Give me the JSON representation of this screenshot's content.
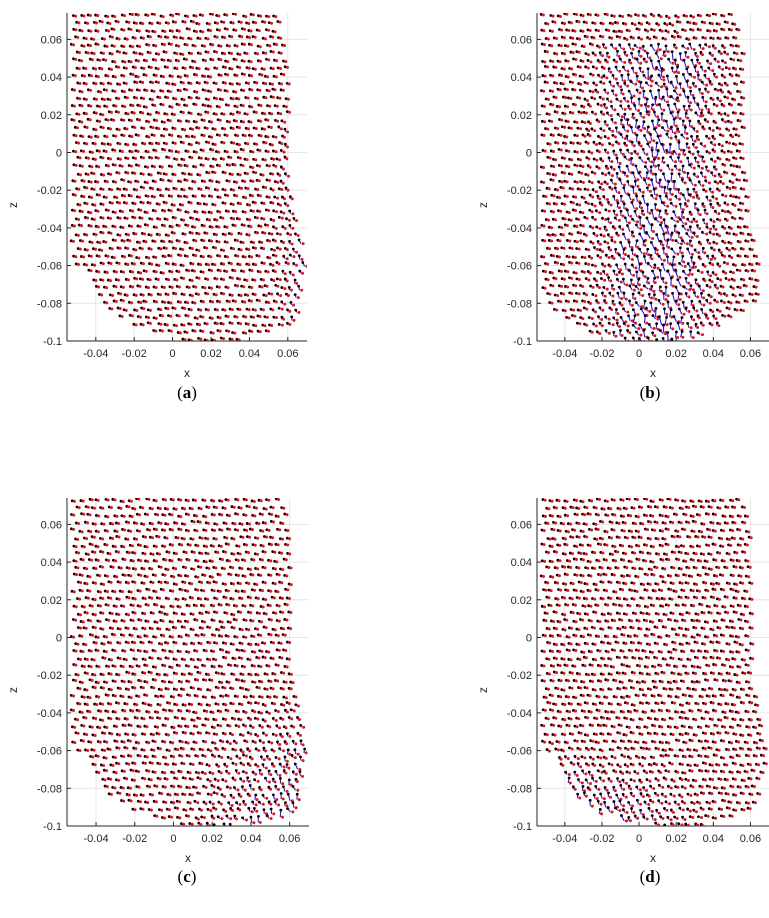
{
  "figure": {
    "panels": [
      {
        "caption_open": "(",
        "caption_letter": "a",
        "caption_close": ")"
      },
      {
        "caption_open": "(",
        "caption_letter": "b",
        "caption_close": ")"
      },
      {
        "caption_open": "(",
        "caption_letter": "c",
        "caption_close": ")"
      },
      {
        "caption_open": "(",
        "caption_letter": "d",
        "caption_close": ")"
      }
    ]
  },
  "colors": {
    "reference_points": "#000000",
    "estimated_points": "#e8141c",
    "displacement_vectors": "#1a1ae6",
    "grid": "#e6e6e6",
    "axis": "#262626"
  },
  "chart_data": [
    {
      "type": "scatter",
      "panel": "a",
      "xlabel": "x",
      "ylabel": "z",
      "xlim": [
        -0.055,
        0.07
      ],
      "ylim": [
        -0.1,
        0.074
      ],
      "xticks": [
        -0.04,
        -0.02,
        0,
        0.02,
        0.04,
        0.06
      ],
      "xtick_labels": [
        "-0.04",
        "-0.02",
        "0",
        "0.02",
        "0.04",
        "0.06"
      ],
      "yticks": [
        0.06,
        0.04,
        0.02,
        0,
        -0.02,
        -0.04,
        -0.06,
        -0.08,
        -0.1
      ],
      "ytick_labels": [
        "0.06",
        "0.04",
        "0.02",
        "0",
        "-0.02",
        "-0.04",
        "-0.06",
        "-0.08",
        "-0.1"
      ],
      "grid": true,
      "outline": {
        "x_left": -0.053,
        "x_right": 0.068,
        "bottom_z": -0.1,
        "bottom_center_x": 0.02,
        "right_bulge_z": -0.06
      },
      "displacement_region": "right-edge",
      "displacement_strength": 0.35
    },
    {
      "type": "scatter",
      "panel": "b",
      "xlabel": "x",
      "ylabel": "z",
      "xlim": [
        -0.055,
        0.07
      ],
      "ylim": [
        -0.1,
        0.074
      ],
      "xticks": [
        -0.04,
        -0.02,
        0,
        0.02,
        0.04,
        0.06
      ],
      "xtick_labels": [
        "-0.04",
        "-0.02",
        "0",
        "0.02",
        "0.04",
        "0.06"
      ],
      "yticks": [
        0.06,
        0.04,
        0.02,
        0,
        -0.02,
        -0.04,
        -0.06,
        -0.08,
        -0.1
      ],
      "ytick_labels": [
        "0.06",
        "0.04",
        "0.02",
        "0",
        "-0.02",
        "-0.04",
        "-0.06",
        "-0.08",
        "-0.1"
      ],
      "grid": true,
      "outline": {
        "x_left": -0.053,
        "x_right": 0.065,
        "bottom_z": -0.1,
        "bottom_center_x": 0.005,
        "right_bulge_z": -0.07
      },
      "displacement_region": "center",
      "displacement_strength": 0.6
    },
    {
      "type": "scatter",
      "panel": "c",
      "xlabel": "x",
      "ylabel": "z",
      "xlim": [
        -0.055,
        0.07
      ],
      "ylim": [
        -0.1,
        0.074
      ],
      "xticks": [
        -0.04,
        -0.02,
        0,
        0.02,
        0.04,
        0.06
      ],
      "xtick_labels": [
        "-0.04",
        "-0.02",
        "0",
        "0.02",
        "0.04",
        "0.06"
      ],
      "yticks": [
        0.06,
        0.04,
        0.02,
        0,
        -0.02,
        -0.04,
        -0.06,
        -0.08,
        -0.1
      ],
      "ytick_labels": [
        "0.06",
        "0.04",
        "0.02",
        "0",
        "-0.02",
        "-0.04",
        "-0.06",
        "-0.08",
        "-0.1"
      ],
      "grid": true,
      "outline": {
        "x_left": -0.053,
        "x_right": 0.068,
        "bottom_z": -0.1,
        "bottom_center_x": 0.02,
        "right_bulge_z": -0.06
      },
      "displacement_region": "bottom-right",
      "displacement_strength": 0.7
    },
    {
      "type": "scatter",
      "panel": "d",
      "xlabel": "x",
      "ylabel": "z",
      "xlim": [
        -0.055,
        0.07
      ],
      "ylim": [
        -0.1,
        0.074
      ],
      "xticks": [
        -0.04,
        -0.02,
        0,
        0.02,
        0.04,
        0.06
      ],
      "xtick_labels": [
        "-0.04",
        "-0.02",
        "0",
        "0.02",
        "0.04",
        "0.06"
      ],
      "yticks": [
        0.06,
        0.04,
        0.02,
        0,
        -0.02,
        -0.04,
        -0.06,
        -0.08,
        -0.1
      ],
      "ytick_labels": [
        "0.06",
        "0.04",
        "0.02",
        "0",
        "-0.02",
        "-0.04",
        "-0.06",
        "-0.08",
        "-0.1"
      ],
      "grid": true,
      "outline": {
        "x_left": -0.053,
        "x_right": 0.068,
        "bottom_z": -0.1,
        "bottom_center_x": 0.02,
        "right_bulge_z": -0.06
      },
      "displacement_region": "bottom-left",
      "displacement_strength": 0.8
    }
  ]
}
